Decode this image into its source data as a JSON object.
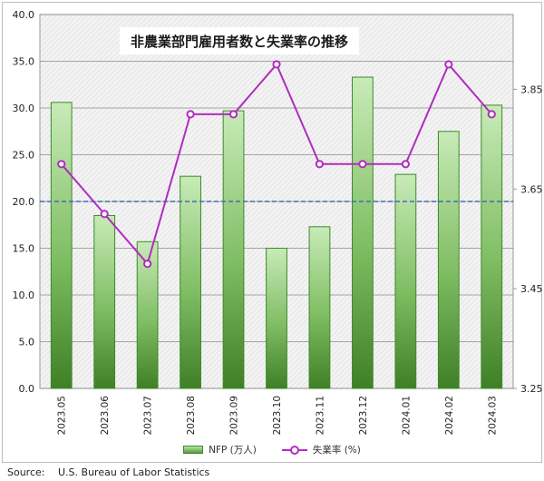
{
  "chart_data": {
    "type": "bar",
    "title": "非農業部門雇用者数と失業率の推移",
    "categories": [
      "2023.05",
      "2023.06",
      "2023.07",
      "2023.08",
      "2023.09",
      "2023.10",
      "2023.11",
      "2023.12",
      "2024.01",
      "2024.02",
      "2024.03"
    ],
    "series": [
      {
        "name": "NFP (万人)",
        "type": "bar",
        "axis": "left",
        "values": [
          30.6,
          18.5,
          15.7,
          22.7,
          29.7,
          15.0,
          17.3,
          33.3,
          22.9,
          27.5,
          30.3
        ]
      },
      {
        "name": "失業率 (%)",
        "type": "line",
        "axis": "right",
        "values": [
          3.7,
          3.6,
          3.5,
          3.8,
          3.8,
          3.9,
          3.7,
          3.7,
          3.7,
          3.9,
          3.8
        ]
      }
    ],
    "y_left": {
      "range": [
        0,
        40
      ],
      "ticks": [
        "0.0",
        "5.0",
        "10.0",
        "15.0",
        "20.0",
        "25.0",
        "30.0",
        "35.0",
        "40.0"
      ]
    },
    "y_right": {
      "range": [
        3.25,
        4.0
      ],
      "ticks": [
        "3.25",
        "3.45",
        "3.65",
        "3.85"
      ]
    },
    "reference_line": {
      "value": 20,
      "axis": "left",
      "style": "dashed"
    },
    "grid": true,
    "legend_position": "bottom",
    "colors": {
      "bar_light": "#c8ebb8",
      "bar_dark": "#3f7f25",
      "bar_border": "#3c8a2a",
      "line": "#b02cc0",
      "reference": "#3a6fb0"
    }
  },
  "source": {
    "label": "Source:",
    "text": "U.S. Bureau of Labor Statistics"
  }
}
